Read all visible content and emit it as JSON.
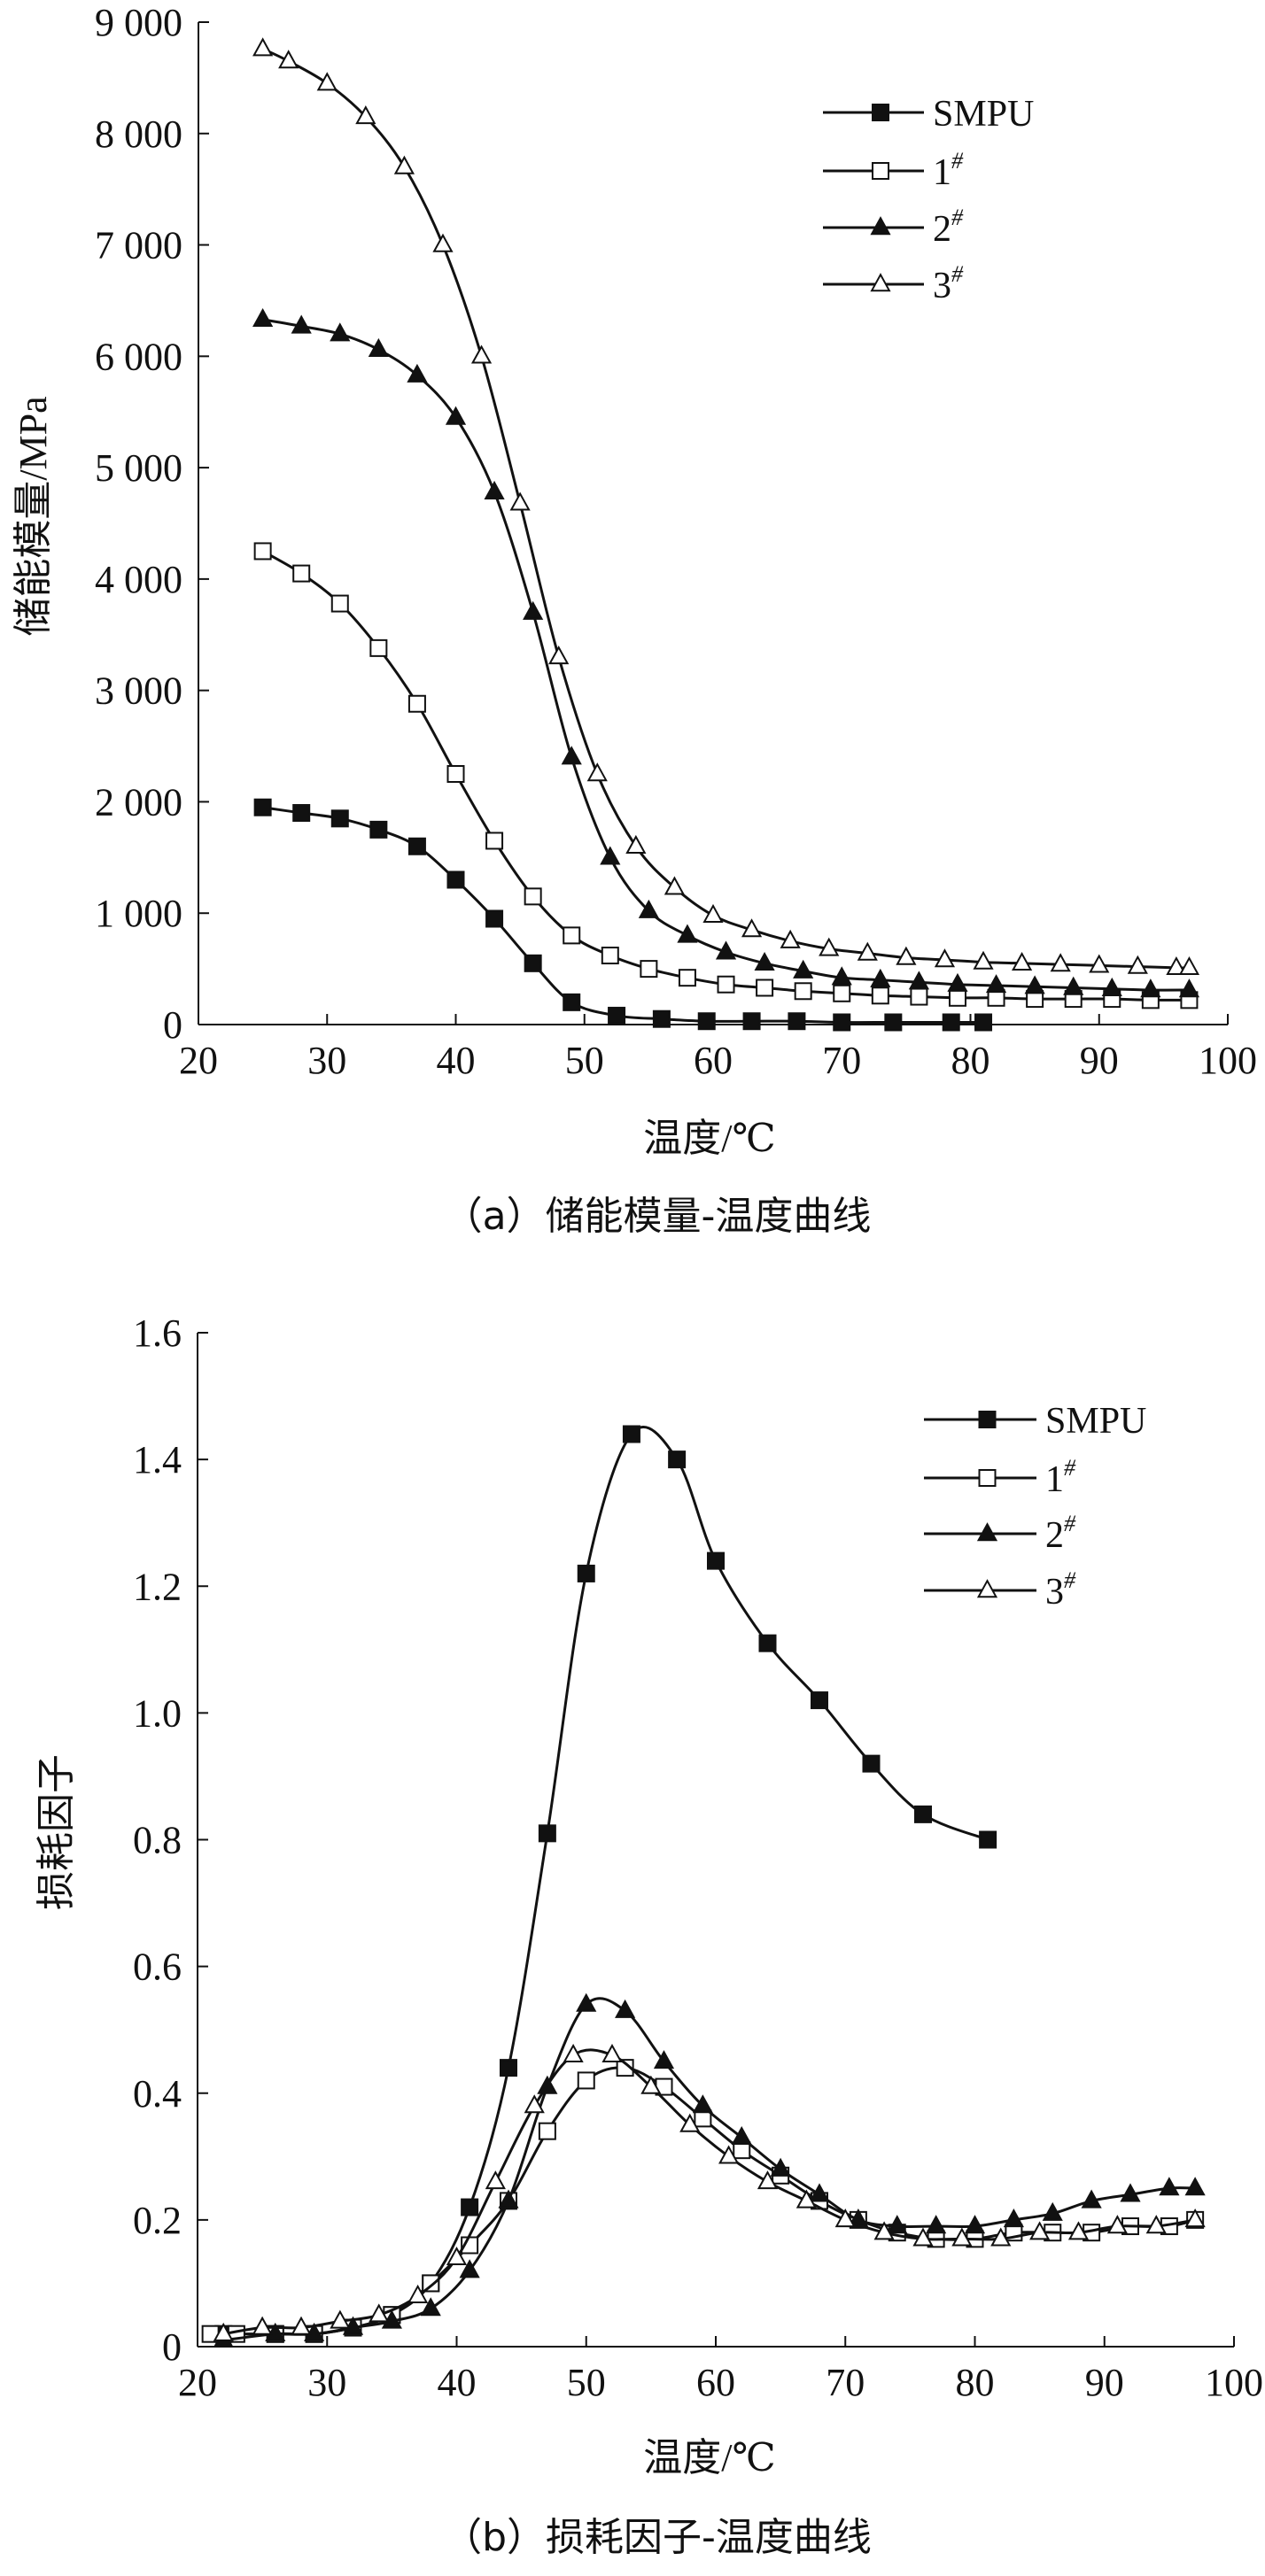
{
  "chart_data": [
    {
      "type": "line",
      "caption": "（a）储能模量-温度曲线",
      "xlabel": "温度/℃",
      "ylabel": "储能模量/MPa",
      "xlim": [
        20,
        100
      ],
      "ylim": [
        0,
        9000
      ],
      "xticks": [
        "20",
        "30",
        "40",
        "50",
        "60",
        "70",
        "80",
        "90",
        "100"
      ],
      "yticks": [
        "0",
        "1 000",
        "2 000",
        "3 000",
        "4 000",
        "5 000",
        "6 000",
        "7 000",
        "8 000",
        "9 000"
      ],
      "legend_position": "top-right",
      "series": [
        {
          "name": "SMPU",
          "sup": "",
          "marker": "filled-square",
          "x": [
            25,
            28,
            31,
            34,
            37,
            40,
            43,
            46,
            49,
            52.5,
            56,
            59.5,
            63,
            66.5,
            70,
            74,
            78.5,
            81
          ],
          "y": [
            1950,
            1900,
            1850,
            1750,
            1600,
            1300,
            950,
            550,
            200,
            80,
            50,
            30,
            30,
            30,
            20,
            20,
            20,
            20
          ]
        },
        {
          "name": "1",
          "sup": "#",
          "marker": "open-square",
          "x": [
            25,
            28,
            31,
            34,
            37,
            40,
            43,
            46,
            49,
            52,
            55,
            58,
            61,
            64,
            67,
            70,
            73,
            76,
            79,
            82,
            85,
            88,
            91,
            94,
            97
          ],
          "y": [
            4250,
            4050,
            3780,
            3380,
            2880,
            2250,
            1650,
            1150,
            800,
            620,
            500,
            420,
            360,
            330,
            300,
            280,
            260,
            250,
            240,
            240,
            230,
            230,
            230,
            220,
            220
          ]
        },
        {
          "name": "2",
          "sup": "#",
          "marker": "filled-triangle",
          "x": [
            25,
            28,
            31,
            34,
            37,
            40,
            43,
            46,
            49,
            52,
            55,
            58,
            61,
            64,
            67,
            70,
            73,
            76,
            79,
            82,
            85,
            88,
            91,
            94,
            97
          ],
          "y": [
            6330,
            6270,
            6200,
            6060,
            5830,
            5450,
            4780,
            3700,
            2400,
            1500,
            1020,
            800,
            650,
            550,
            480,
            420,
            400,
            380,
            360,
            350,
            340,
            330,
            320,
            310,
            310
          ]
        },
        {
          "name": "3",
          "sup": "#",
          "marker": "open-triangle",
          "x": [
            25,
            27,
            30,
            33,
            36,
            39,
            42,
            45,
            48,
            51,
            54,
            57,
            60,
            63,
            66,
            69,
            72,
            75,
            78,
            81,
            84,
            87,
            90,
            93,
            96,
            97
          ],
          "y": [
            8760,
            8650,
            8450,
            8150,
            7700,
            7000,
            6000,
            4680,
            3300,
            2250,
            1600,
            1230,
            980,
            850,
            750,
            680,
            640,
            600,
            580,
            560,
            550,
            540,
            530,
            520,
            510,
            510
          ]
        }
      ]
    },
    {
      "type": "line",
      "caption": "（b）损耗因子-温度曲线",
      "xlabel": "温度/℃",
      "ylabel": "损耗因子",
      "xlim": [
        20,
        100
      ],
      "ylim": [
        0,
        1.6
      ],
      "xticks": [
        "20",
        "30",
        "40",
        "50",
        "60",
        "70",
        "80",
        "90",
        "100"
      ],
      "yticks": [
        "0",
        "0.2",
        "0.4",
        "0.6",
        "0.8",
        "1.0",
        "1.2",
        "1.4",
        "1.6"
      ],
      "legend_position": "top-right",
      "series": [
        {
          "name": "SMPU",
          "sup": "",
          "marker": "filled-square",
          "x": [
            22,
            26,
            29,
            32,
            35,
            38,
            41,
            44,
            47,
            50,
            53.5,
            57,
            60,
            64,
            68,
            72,
            76,
            81
          ],
          "y": [
            0.02,
            0.02,
            0.02,
            0.03,
            0.05,
            0.1,
            0.22,
            0.44,
            0.81,
            1.22,
            1.44,
            1.4,
            1.24,
            1.11,
            1.02,
            0.92,
            0.84,
            0.8
          ]
        },
        {
          "name": "1",
          "sup": "#",
          "marker": "open-square",
          "x": [
            21,
            23,
            26,
            29,
            32,
            35,
            38,
            41,
            44,
            47,
            50,
            53,
            56,
            59,
            62,
            65,
            68,
            71,
            74,
            77,
            80,
            83,
            86,
            89,
            92,
            95,
            97
          ],
          "y": [
            0.02,
            0.02,
            0.02,
            0.02,
            0.03,
            0.05,
            0.1,
            0.16,
            0.23,
            0.34,
            0.42,
            0.44,
            0.41,
            0.36,
            0.31,
            0.27,
            0.23,
            0.2,
            0.18,
            0.17,
            0.17,
            0.18,
            0.18,
            0.18,
            0.19,
            0.19,
            0.2
          ]
        },
        {
          "name": "2",
          "sup": "#",
          "marker": "filled-triangle",
          "x": [
            22,
            26,
            29,
            32,
            35,
            38,
            41,
            44,
            47,
            50,
            53,
            56,
            59,
            62,
            65,
            68,
            71,
            74,
            77,
            80,
            83,
            86,
            89,
            92,
            95,
            97
          ],
          "y": [
            0.01,
            0.02,
            0.02,
            0.03,
            0.04,
            0.06,
            0.12,
            0.23,
            0.41,
            0.54,
            0.53,
            0.45,
            0.38,
            0.33,
            0.28,
            0.24,
            0.2,
            0.19,
            0.19,
            0.19,
            0.2,
            0.21,
            0.23,
            0.24,
            0.25,
            0.25
          ]
        },
        {
          "name": "3",
          "sup": "#",
          "marker": "open-triangle",
          "x": [
            22,
            25,
            28,
            31,
            34,
            37,
            40,
            43,
            46,
            49,
            52,
            55,
            58,
            61,
            64,
            67,
            70,
            73,
            76,
            79,
            82,
            85,
            88,
            91,
            94,
            97
          ],
          "y": [
            0.02,
            0.03,
            0.03,
            0.04,
            0.05,
            0.08,
            0.14,
            0.26,
            0.38,
            0.46,
            0.46,
            0.41,
            0.35,
            0.3,
            0.26,
            0.23,
            0.2,
            0.18,
            0.17,
            0.17,
            0.17,
            0.18,
            0.18,
            0.19,
            0.19,
            0.2
          ]
        }
      ]
    }
  ]
}
